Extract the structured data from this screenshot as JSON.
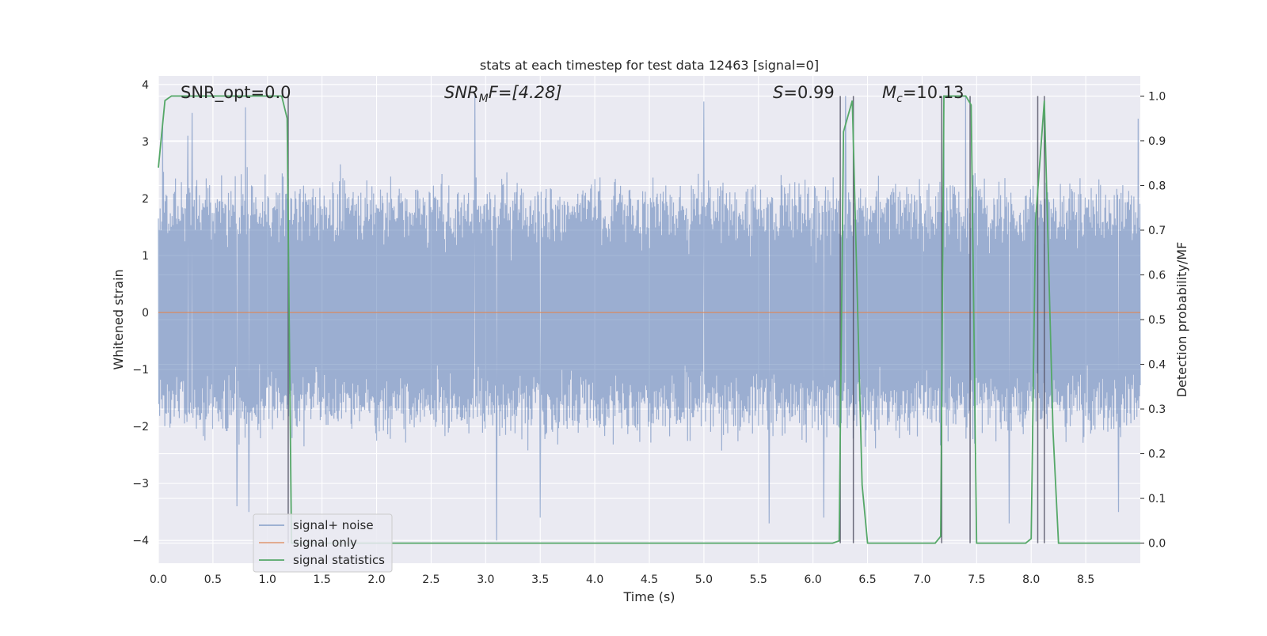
{
  "chart_data": {
    "type": "line",
    "title": "stats at each timestep for test data 12463 [signal=0]",
    "xlabel": "Time (s)",
    "ylabel_left": "Whitened strain",
    "ylabel_right": "Detection probability/MF",
    "xlim": [
      0,
      9.0
    ],
    "ylim_left": [
      -4.4,
      4.15
    ],
    "ylim_right": [
      -0.045,
      1.045
    ],
    "x_ticks": [
      "0.0",
      "0.5",
      "1.0",
      "1.5",
      "2.0",
      "2.5",
      "3.0",
      "3.5",
      "4.0",
      "4.5",
      "5.0",
      "5.5",
      "6.0",
      "6.5",
      "7.0",
      "7.5",
      "8.0",
      "8.5"
    ],
    "y_left_ticks": [
      "4",
      "3",
      "2",
      "1",
      "0",
      "−1",
      "−2",
      "−3",
      "−4"
    ],
    "y_right_ticks": [
      "1.0",
      "0.9",
      "0.8",
      "0.7",
      "0.6",
      "0.5",
      "0.4",
      "0.3",
      "0.2",
      "0.1",
      "0.0"
    ],
    "grid": true,
    "legend_placement": "lower-left",
    "annotations": {
      "snr_opt": "SNR_opt=0.0",
      "snr_mf_prefix": "SNR",
      "snr_mf_sub": "M",
      "snr_mf_suffix": "F=[4.28]",
      "s_prefix": "S",
      "s_suffix": "=0.99",
      "mc_prefix": "M",
      "mc_sub": "c",
      "mc_suffix": "=10.13"
    },
    "series": [
      {
        "name": "signal+ noise",
        "color": "#4c72b0",
        "description_axis": "left",
        "noise_band_typical": [
          -1.7,
          2.2
        ],
        "notable_spikes": [
          {
            "x": 0.04,
            "y": 3.3
          },
          {
            "x": 0.27,
            "y": 3.1
          },
          {
            "x": 0.31,
            "y": 3.5
          },
          {
            "x": 0.8,
            "y": 3.6
          },
          {
            "x": 2.9,
            "y": 3.8
          },
          {
            "x": 3.1,
            "y": 3.8
          },
          {
            "x": 5.0,
            "y": 3.7
          },
          {
            "x": 6.3,
            "y": 3.8
          },
          {
            "x": 7.2,
            "y": 3.4
          },
          {
            "x": 7.4,
            "y": 3.8
          },
          {
            "x": 8.98,
            "y": 3.4
          },
          {
            "x": 0.72,
            "y": -3.4
          },
          {
            "x": 0.83,
            "y": -3.5
          },
          {
            "x": 3.1,
            "y": -4.0
          },
          {
            "x": 3.5,
            "y": -3.6
          },
          {
            "x": 5.6,
            "y": -3.7
          },
          {
            "x": 6.1,
            "y": -3.6
          },
          {
            "x": 7.8,
            "y": -3.7
          },
          {
            "x": 8.8,
            "y": -3.5
          }
        ]
      },
      {
        "name": "signal only",
        "color": "#dd8452",
        "description_axis": "left",
        "x": [
          0,
          9.0
        ],
        "y": [
          0,
          0
        ]
      },
      {
        "name": "signal statistics",
        "color": "#55a868",
        "description_axis": "right",
        "x": [
          0.0,
          0.06,
          0.12,
          1.0,
          1.13,
          1.18,
          1.22,
          1.26,
          6.18,
          6.24,
          6.28,
          6.36,
          6.45,
          6.5,
          7.12,
          7.17,
          7.2,
          7.4,
          7.45,
          7.5,
          7.95,
          8.0,
          8.04,
          8.12,
          8.2,
          8.25,
          9.0
        ],
        "y": [
          0.84,
          0.99,
          1.0,
          1.0,
          1.0,
          0.95,
          0.0,
          0.0,
          0.0,
          0.005,
          0.92,
          0.99,
          0.13,
          0.0,
          0.0,
          0.015,
          1.0,
          1.0,
          0.98,
          0.0,
          0.0,
          0.01,
          0.72,
          0.99,
          0.25,
          0.0,
          0.0
        ]
      }
    ],
    "vertical_markers_x": [
      1.19,
      6.25,
      6.37,
      7.18,
      7.44,
      8.06,
      8.12
    ]
  }
}
